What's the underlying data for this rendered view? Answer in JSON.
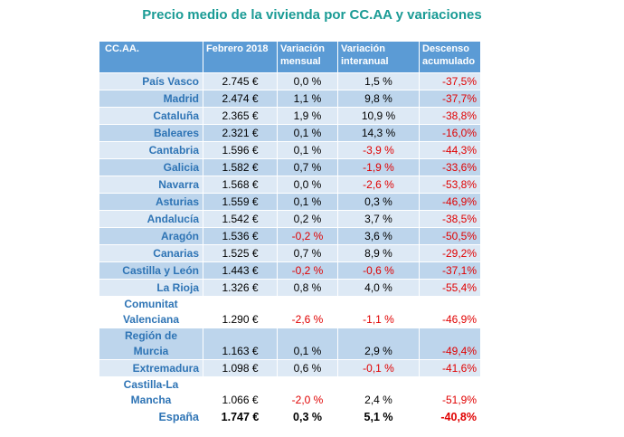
{
  "title": "Precio medio de la vivienda por CC.AA y variaciones",
  "headers": {
    "col0": "CC.AA.",
    "col1": "Febrero 2018",
    "col2_l1": "Variación",
    "col2_l2": "mensual",
    "col3_l1": "Variación",
    "col3_l2": "interanual",
    "col4_l1": "Descenso",
    "col4_l2": "acumulado"
  },
  "rows": [
    {
      "region": "País Vasco",
      "price": "2.745 €",
      "monthly": "0,0 %",
      "annual": "1,5 %",
      "cumulative": "-37,5%"
    },
    {
      "region": "Madrid",
      "price": "2.474 €",
      "monthly": "1,1 %",
      "annual": "9,8 %",
      "cumulative": "-37,7%"
    },
    {
      "region": "Cataluña",
      "price": "2.365 €",
      "monthly": "1,9 %",
      "annual": "10,9 %",
      "cumulative": "-38,8%"
    },
    {
      "region": "Baleares",
      "price": "2.321 €",
      "monthly": "0,1 %",
      "annual": "14,3 %",
      "cumulative": "-16,0%"
    },
    {
      "region": "Cantabria",
      "price": "1.596 €",
      "monthly": "0,1 %",
      "annual": "-3,9 %",
      "cumulative": "-44,3%"
    },
    {
      "region": "Galicia",
      "price": "1.582 €",
      "monthly": "0,7 %",
      "annual": "-1,9 %",
      "cumulative": "-33,6%"
    },
    {
      "region": "Navarra",
      "price": "1.568 €",
      "monthly": "0,0 %",
      "annual": "-2,6 %",
      "cumulative": "-53,8%"
    },
    {
      "region": "Asturias",
      "price": "1.559 €",
      "monthly": "0,1 %",
      "annual": "0,3 %",
      "cumulative": "-46,9%"
    },
    {
      "region": "Andalucía",
      "price": "1.542 €",
      "monthly": "0,2 %",
      "annual": "3,7 %",
      "cumulative": "-38,5%"
    },
    {
      "region": "Aragón",
      "price": "1.536 €",
      "monthly": "-0,2 %",
      "annual": "3,6 %",
      "cumulative": "-50,5%"
    },
    {
      "region": "Canarias",
      "price": "1.525 €",
      "monthly": "0,7 %",
      "annual": "8,9 %",
      "cumulative": "-29,2%"
    },
    {
      "region": "Castilla y León",
      "price": "1.443 €",
      "monthly": "-0,2 %",
      "annual": "-0,6 %",
      "cumulative": "-37,1%"
    },
    {
      "region": "La Rioja",
      "price": "1.326 €",
      "monthly": "0,8 %",
      "annual": "4,0 %",
      "cumulative": "-55,4%"
    },
    {
      "region_l1": "Comunitat",
      "region_l2": "Valenciana",
      "price": "1.290 €",
      "monthly": "-2,6 %",
      "annual": "-1,1 %",
      "cumulative": "-46,9%"
    },
    {
      "region_l1": "Región de",
      "region_l2": "Murcia",
      "price": "1.163 €",
      "monthly": "0,1 %",
      "annual": "2,9 %",
      "cumulative": "-49,4%"
    },
    {
      "region": "Extremadura",
      "price": "1.098 €",
      "monthly": "0,6 %",
      "annual": "-0,1 %",
      "cumulative": "-41,6%"
    },
    {
      "region_l1": "Castilla-La",
      "region_l2": "Mancha",
      "price": "1.066 €",
      "monthly": "-2,0 %",
      "annual": "2,4 %",
      "cumulative": "-51,9%"
    },
    {
      "region": "España",
      "price": "1.747 €",
      "monthly": "0,3 %",
      "annual": "5,1 %",
      "cumulative": "-40,8%"
    }
  ]
}
